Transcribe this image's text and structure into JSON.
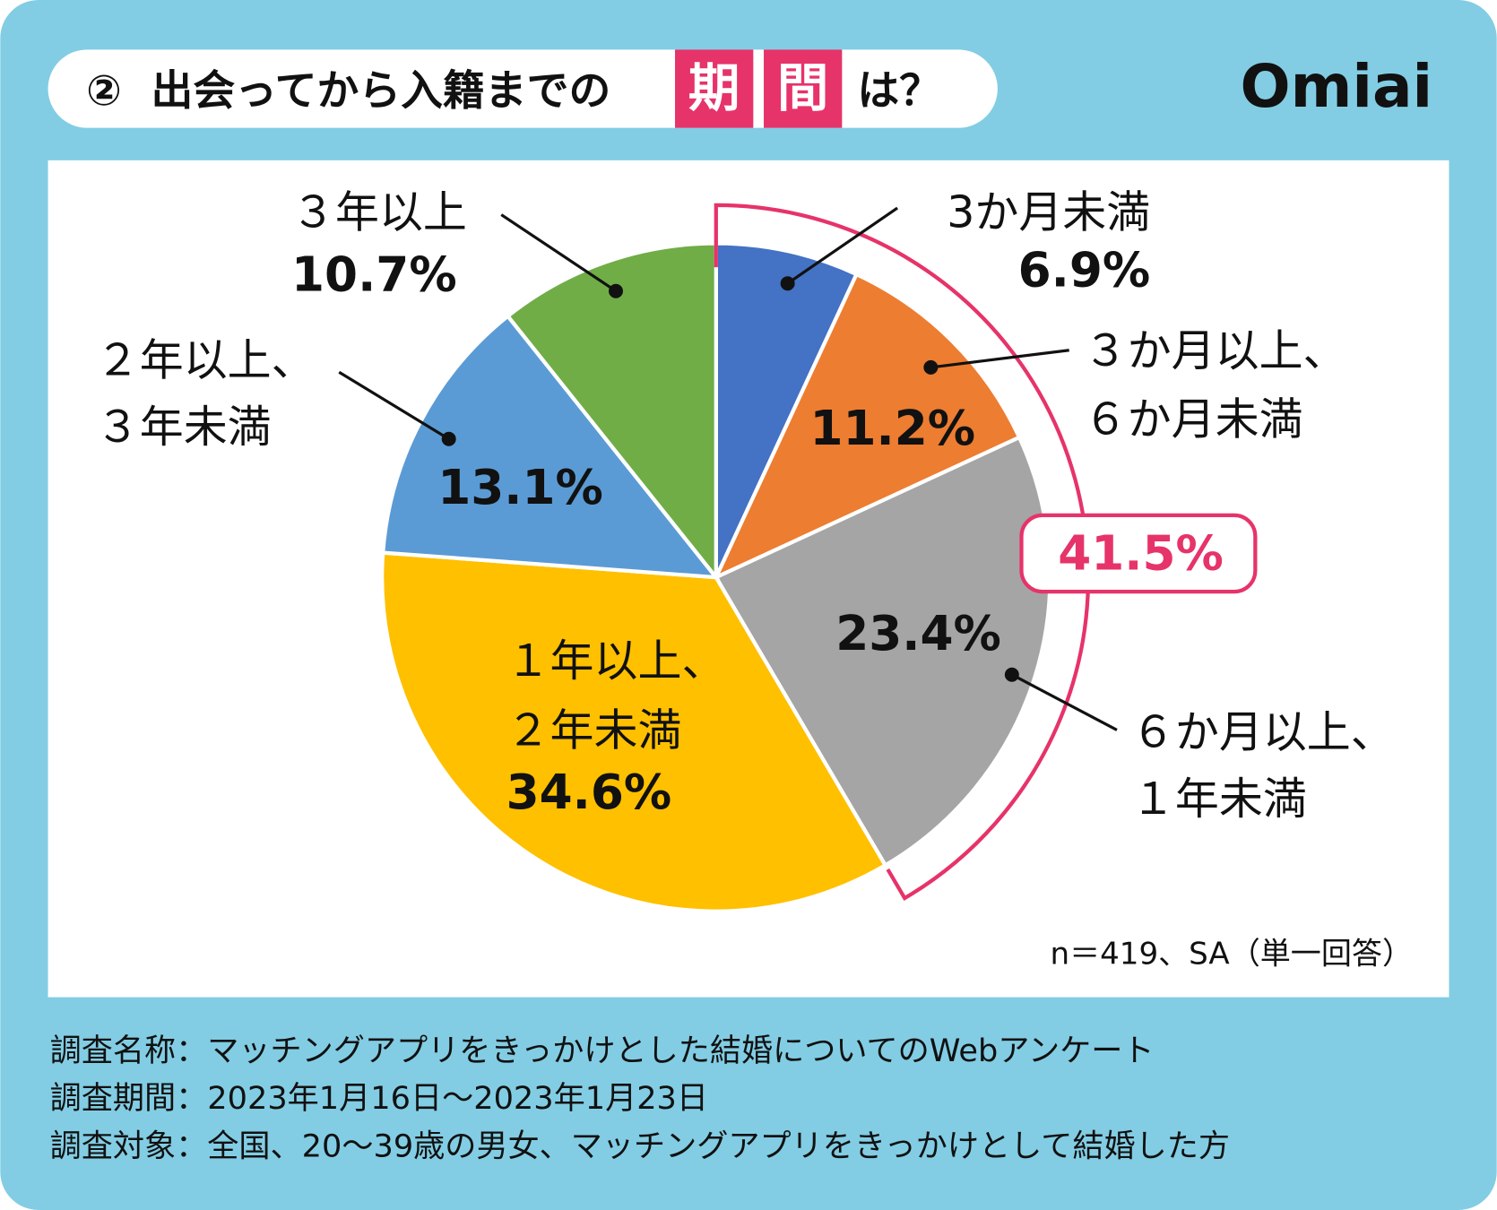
{
  "title": {
    "number": "②",
    "text_before": "出会ってから入籍までの",
    "highlight_1": "期",
    "highlight_2": "間",
    "text_after": "は？"
  },
  "logo": "Omiai",
  "colors": {
    "background": "#82CDE4",
    "highlight": "#E6336A",
    "bracket": "#E6336A"
  },
  "chart_data": {
    "type": "pie",
    "start": "top, clockwise",
    "slices": [
      {
        "label": [
          "3か月未満"
        ],
        "value": 6.9,
        "value_label": "6.9%",
        "color": "#4472C4"
      },
      {
        "label": [
          "３か月以上、",
          "６か月未満"
        ],
        "value": 11.2,
        "value_label": "11.2%",
        "color": "#ED7D31"
      },
      {
        "label": [
          "６か月以上、",
          "１年未満"
        ],
        "value": 23.4,
        "value_label": "23.4%",
        "color": "#A5A5A5"
      },
      {
        "label": [
          "１年以上、",
          "２年未満"
        ],
        "value": 34.6,
        "value_label": "34.6%",
        "color": "#FFC000"
      },
      {
        "label": [
          "２年以上、",
          "３年未満"
        ],
        "value": 13.1,
        "value_label": "13.1%",
        "color": "#5B9BD5"
      },
      {
        "label": [
          "３年以上"
        ],
        "value": 10.7,
        "value_label": "10.7%",
        "color": "#70AD47"
      }
    ],
    "bracket_total": "41.5%",
    "note": "n＝419、SA（単一回答）"
  },
  "footer": [
    "調査名称：マッチングアプリをきっかけとした結婚についてのWebアンケート",
    "調査期間：2023年1月16日～2023年1月23日",
    "調査対象：全国、20～39歳の男女、マッチングアプリをきっかけとして結婚した方"
  ]
}
